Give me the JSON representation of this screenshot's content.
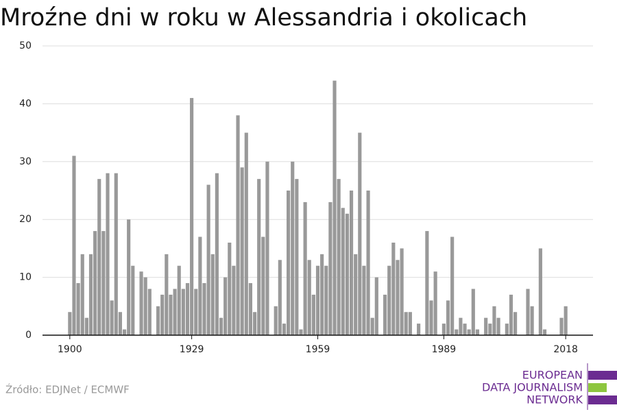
{
  "chart_data": {
    "type": "bar",
    "title": "Mroźne dni w roku w Alessandria i okolicach",
    "source": "Źródło: EDJNet / ECMWF",
    "logo": [
      "EUROPEAN",
      "DATA JOURNALISM",
      "NETWORK"
    ],
    "color": "#999999",
    "grid": true,
    "x": [
      1900,
      1901,
      1902,
      1903,
      1904,
      1905,
      1906,
      1907,
      1908,
      1909,
      1910,
      1911,
      1912,
      1913,
      1914,
      1915,
      1916,
      1917,
      1918,
      1919,
      1920,
      1921,
      1922,
      1923,
      1924,
      1925,
      1926,
      1927,
      1928,
      1929,
      1930,
      1931,
      1932,
      1933,
      1934,
      1935,
      1936,
      1937,
      1938,
      1939,
      1940,
      1941,
      1942,
      1943,
      1944,
      1945,
      1946,
      1947,
      1948,
      1949,
      1950,
      1951,
      1952,
      1953,
      1954,
      1955,
      1956,
      1957,
      1958,
      1959,
      1960,
      1961,
      1962,
      1963,
      1964,
      1965,
      1966,
      1967,
      1968,
      1969,
      1970,
      1971,
      1972,
      1973,
      1974,
      1975,
      1976,
      1977,
      1978,
      1979,
      1980,
      1981,
      1982,
      1983,
      1984,
      1985,
      1986,
      1987,
      1988,
      1989,
      1990,
      1991,
      1992,
      1993,
      1994,
      1995,
      1996,
      1997,
      1998,
      1999,
      2000,
      2001,
      2002,
      2003,
      2004,
      2005,
      2006,
      2007,
      2008,
      2009,
      2010,
      2011,
      2012,
      2013,
      2014,
      2015,
      2016,
      2017,
      2018
    ],
    "values": [
      4,
      31,
      9,
      14,
      3,
      14,
      18,
      27,
      18,
      28,
      6,
      28,
      4,
      1,
      20,
      12,
      0,
      11,
      10,
      8,
      0,
      5,
      7,
      14,
      7,
      8,
      12,
      8,
      9,
      41,
      8,
      17,
      9,
      26,
      14,
      28,
      3,
      10,
      16,
      12,
      38,
      29,
      35,
      9,
      4,
      27,
      17,
      30,
      0,
      5,
      13,
      2,
      25,
      30,
      27,
      1,
      23,
      13,
      7,
      12,
      14,
      12,
      23,
      44,
      27,
      22,
      21,
      25,
      14,
      35,
      12,
      25,
      3,
      10,
      0,
      7,
      12,
      16,
      13,
      15,
      4,
      4,
      0,
      2,
      0,
      18,
      6,
      11,
      0,
      2,
      6,
      17,
      1,
      3,
      2,
      1,
      8,
      1,
      0,
      3,
      2,
      5,
      3,
      0,
      2,
      7,
      4,
      0,
      0,
      8,
      5,
      0,
      15,
      1,
      0,
      0,
      0,
      3,
      5
    ],
    "xlim": [
      1893.5,
      2024.5
    ],
    "xticks": [
      1900,
      1929,
      1959,
      1989,
      2018
    ],
    "ylim": [
      0,
      50
    ],
    "yticks": [
      0,
      10,
      20,
      30,
      40,
      50
    ]
  }
}
